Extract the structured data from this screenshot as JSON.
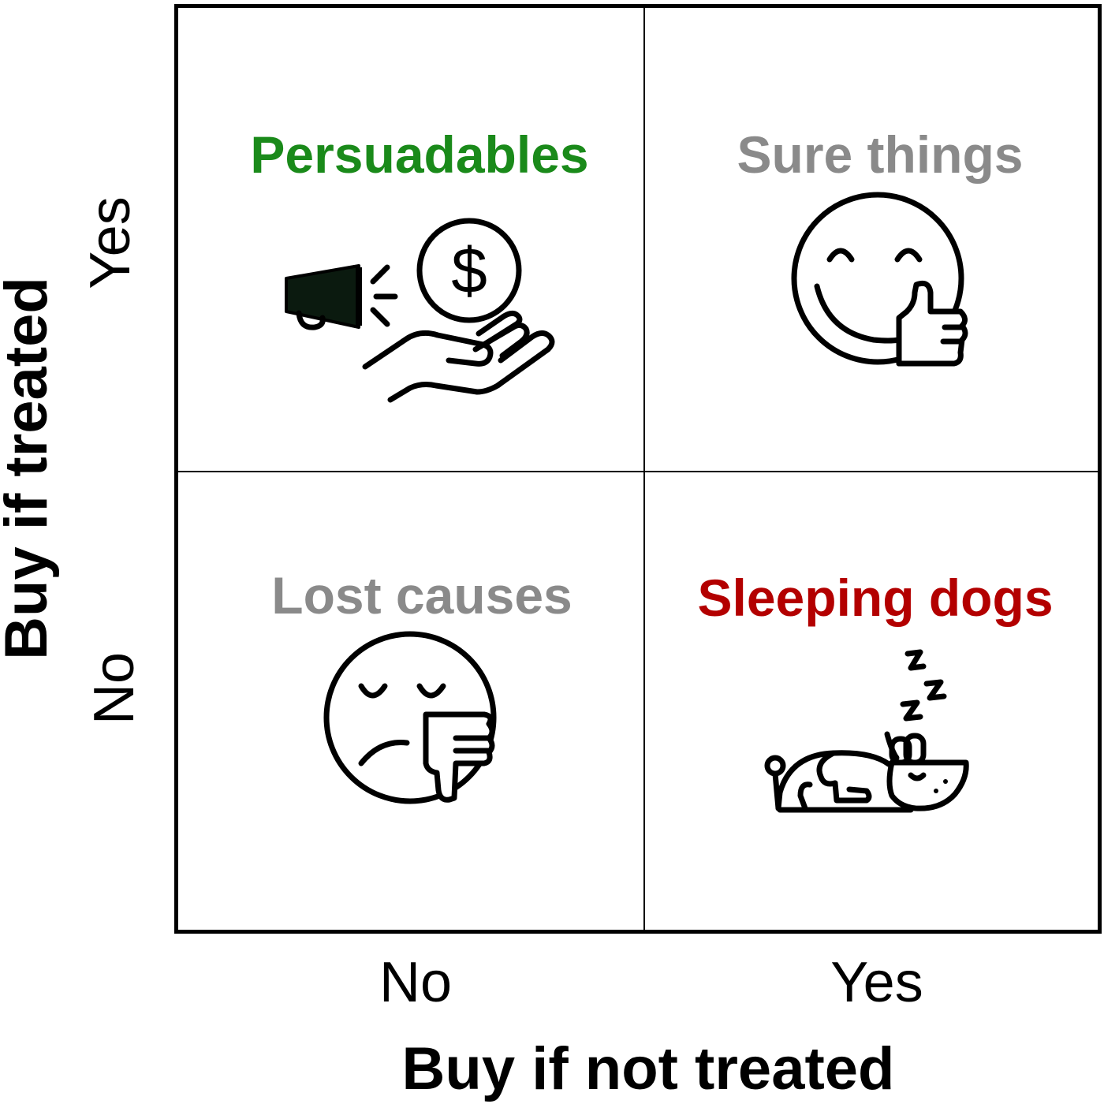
{
  "quadrants": {
    "top_left": {
      "label": "Persuadables",
      "color": "#1a8a1a",
      "icon": "megaphone-coin-hand-icon"
    },
    "top_right": {
      "label": "Sure things",
      "color": "#8a8a8a",
      "icon": "smiley-thumbs-up-icon"
    },
    "bottom_left": {
      "label": "Lost causes",
      "color": "#8a8a8a",
      "icon": "sad-face-thumbs-down-icon"
    },
    "bottom_right": {
      "label": "Sleeping dogs",
      "color": "#b30000",
      "icon": "sleeping-dog-icon"
    }
  },
  "y_axis": {
    "title": "Buy if treated",
    "ticks": [
      "Yes",
      "No"
    ]
  },
  "x_axis": {
    "title": "Buy if not treated",
    "ticks": [
      "No",
      "Yes"
    ]
  },
  "icon_glyph": {
    "dollar": "$"
  }
}
